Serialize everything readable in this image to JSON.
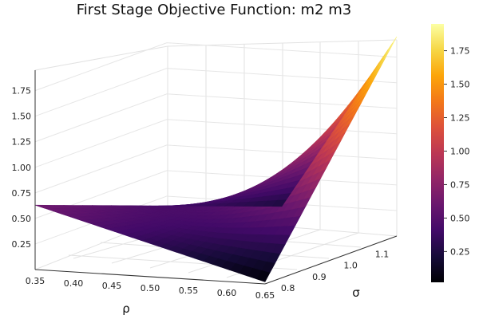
{
  "chart_data": {
    "type": "surface",
    "title": "First Stage Objective Function: m2 m3",
    "xlabel": "ρ",
    "ylabel": "σ",
    "zlabel": "",
    "xlim": [
      0.35,
      0.65
    ],
    "ylim": [
      0.78,
      1.2
    ],
    "zlim": [
      0.0,
      1.95
    ],
    "x_ticks": [
      "0.35",
      "0.40",
      "0.45",
      "0.50",
      "0.55",
      "0.60",
      "0.65"
    ],
    "y_ticks": [
      "0.8",
      "0.9",
      "1.0",
      "1.1"
    ],
    "z_ticks": [
      "0.25",
      "0.50",
      "0.75",
      "1.00",
      "1.25",
      "1.50",
      "1.75"
    ],
    "colorbar": {
      "ticks": [
        "0.25",
        "0.50",
        "0.75",
        "1.00",
        "1.25",
        "1.50",
        "1.75"
      ],
      "range": [
        0.02,
        1.95
      ],
      "colormap": "inferno"
    },
    "surface_corners": [
      {
        "x": 0.35,
        "y": 0.78,
        "z": 0.63
      },
      {
        "x": 0.5,
        "y": 1.2,
        "z": 0.22
      },
      {
        "x": 0.65,
        "y": 1.2,
        "z": 1.95
      },
      {
        "x": 0.65,
        "y": 0.78,
        "z": 0.02
      }
    ],
    "grid": true
  }
}
